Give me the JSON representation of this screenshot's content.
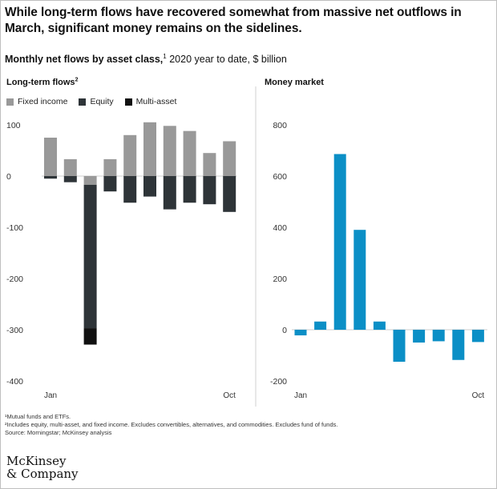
{
  "title": "While long-term flows have recovered somewhat from massive net outflows in March, significant money remains on the sidelines.",
  "subtitle": {
    "bold": "Monthly net flows by asset class,",
    "sup": "1",
    "rest": " 2020 year to date, $ billion"
  },
  "chart_data": [
    {
      "type": "bar",
      "stacked": true,
      "title": "Long-term flows",
      "title_sup": "2",
      "legend_position": "top-left",
      "series": [
        {
          "name": "Fixed income",
          "color": "#999999",
          "values": [
            75,
            33,
            -17,
            33,
            80,
            105,
            98,
            88,
            45,
            68
          ]
        },
        {
          "name": "Equity",
          "color": "#2e3438",
          "values": [
            -5,
            -12,
            -280,
            -30,
            -52,
            -40,
            -65,
            -52,
            -55,
            -70
          ]
        },
        {
          "name": "Multi-asset",
          "color": "#111111",
          "values": [
            0,
            0,
            -32,
            0,
            0,
            0,
            0,
            0,
            0,
            0
          ]
        }
      ],
      "tick_labels": [
        "Jan",
        "Oct"
      ],
      "yticks": [
        "100",
        "0",
        "-100",
        "-200",
        "-300",
        "-400"
      ],
      "ylim": [
        -400,
        100
      ]
    },
    {
      "type": "bar",
      "title": "Money market",
      "color": "#0b8fc6",
      "values": [
        -22,
        32,
        686,
        390,
        32,
        -125,
        -50,
        -45,
        -118,
        -48
      ],
      "tick_labels": [
        "Jan",
        "Oct"
      ],
      "yticks": [
        "800",
        "600",
        "400",
        "200",
        "0",
        "-200"
      ],
      "ylim": [
        -200,
        800
      ]
    }
  ],
  "footnotes": [
    "¹Mutual funds and ETFs.",
    "²Includes equity, multi-asset, and fixed income. Excludes convertibles, alternatives, and commodities. Excludes fund of funds.",
    "Source: Morningstar; McKinsey analysis"
  ],
  "logo": {
    "line1": "McKinsey",
    "line2": "& Company"
  }
}
